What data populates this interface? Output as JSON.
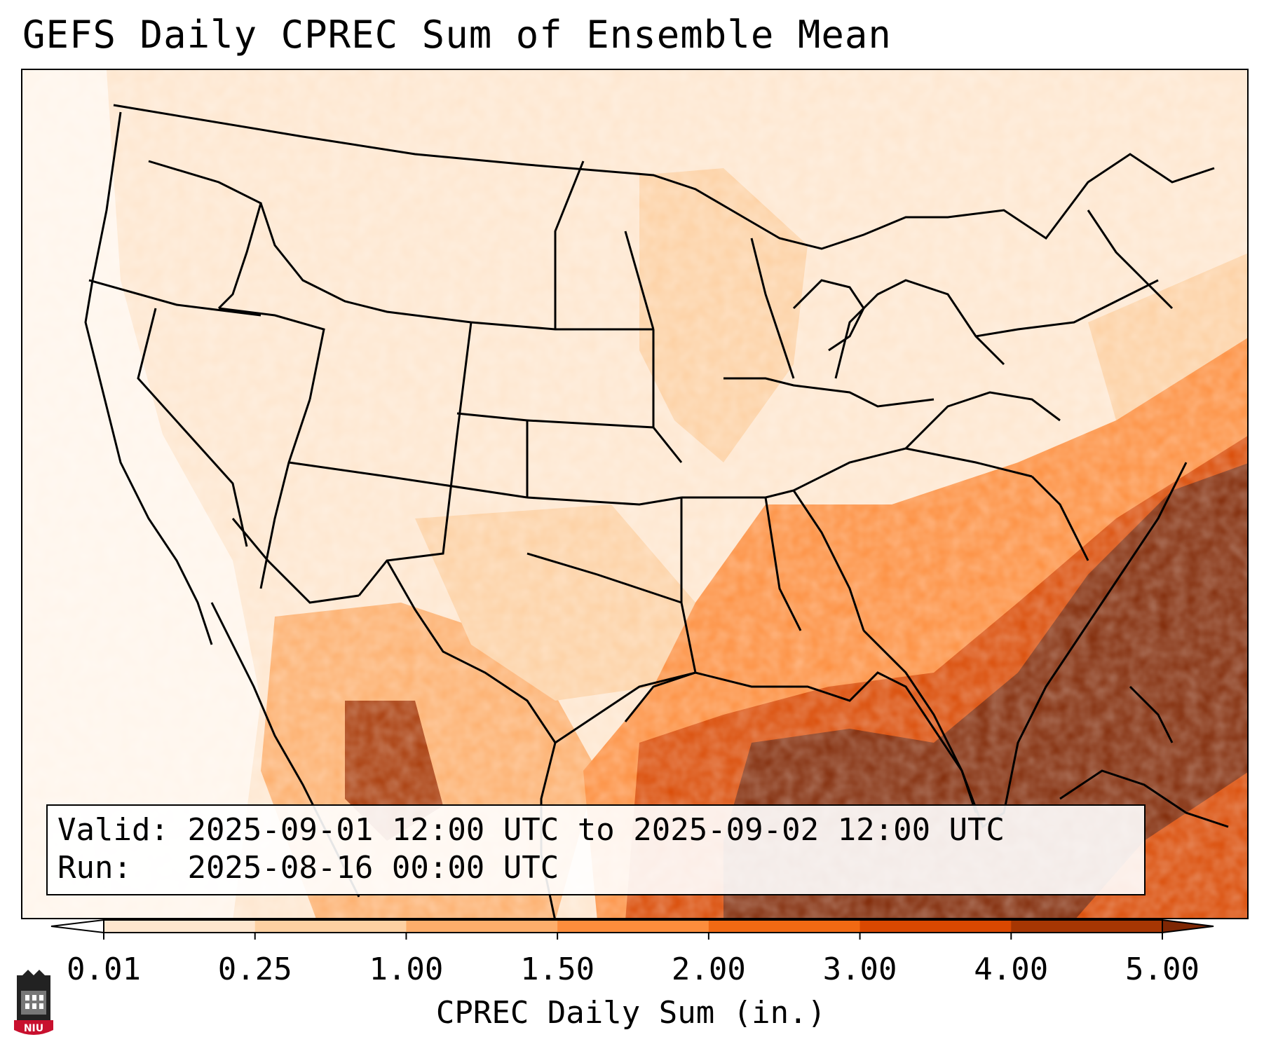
{
  "title": "GEFS Daily CPREC Sum of Ensemble Mean",
  "info": {
    "valid_label": "Valid:",
    "valid_text": "2025-09-01 12:00 UTC to 2025-09-02 12:00 UTC",
    "run_label": "Run:",
    "run_text": "2025-08-16 00:00 UTC"
  },
  "colorbar": {
    "title": "CPREC Daily Sum (in.)",
    "ticks": [
      "0.01",
      "0.25",
      "1.00",
      "1.50",
      "2.00",
      "3.00",
      "4.00",
      "5.00"
    ],
    "colors": [
      "#fff5eb",
      "#fee6ce",
      "#fdd0a2",
      "#fdae6b",
      "#fd8d3c",
      "#f16913",
      "#d94801",
      "#a63603",
      "#7f2704"
    ],
    "under_color": "#ffffff",
    "over_color": "#7f2704"
  },
  "map": {
    "region": "Continental United States",
    "variable": "convective precipitation daily sum",
    "boundaries": [
      "coastlines",
      "state-borders",
      "country-borders"
    ]
  },
  "logo": {
    "name": "NIU"
  }
}
